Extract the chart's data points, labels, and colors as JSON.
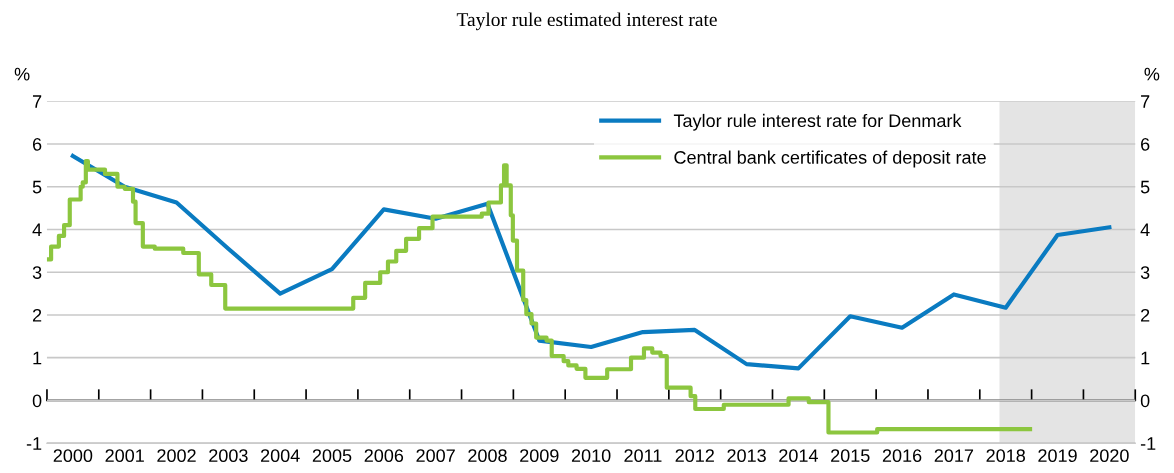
{
  "chart_data": {
    "type": "line",
    "title": "Taylor rule estimated interest rate",
    "ylabel": "%",
    "y2label": "%",
    "series": [
      {
        "name": "Taylor rule interest rate for Denmark",
        "color": "#0a7bc1",
        "x": [
          2000.5,
          2001.5,
          2002.5,
          2003.5,
          2004.5,
          2005.5,
          2006.5,
          2007.5,
          2008.5,
          2009.5,
          2010.5,
          2011.5,
          2012.5,
          2013.5,
          2014.5,
          2015.5,
          2016.5,
          2017.5,
          2018.5,
          2019.5,
          2020.5
        ],
        "values": [
          5.72,
          5.0,
          4.63,
          3.55,
          2.5,
          3.07,
          4.47,
          4.25,
          4.6,
          1.4,
          1.25,
          1.6,
          1.65,
          0.85,
          0.75,
          1.97,
          1.7,
          2.48,
          2.17,
          3.87,
          4.05
        ]
      },
      {
        "name": "Central bank certificates of deposit rate",
        "color": "#8cc63f",
        "type": "step",
        "x": [
          2000.0,
          2000.08,
          2000.23,
          2000.33,
          2000.44,
          2000.65,
          2000.69,
          2000.75,
          2000.79,
          2001.12,
          2001.36,
          2001.5,
          2001.66,
          2001.71,
          2001.85,
          2002.08,
          2002.63,
          2002.93,
          2003.17,
          2003.44,
          2005.91,
          2006.14,
          2006.43,
          2006.58,
          2006.74,
          2006.93,
          2007.18,
          2007.44,
          2008.39,
          2008.52,
          2008.76,
          2008.82,
          2008.87,
          2008.95,
          2008.99,
          2009.07,
          2009.19,
          2009.25,
          2009.35,
          2009.44,
          2009.64,
          2009.74,
          2009.97,
          2010.06,
          2010.22,
          2010.39,
          2010.81,
          2011.27,
          2011.52,
          2011.68,
          2011.84,
          2011.96,
          2012.42,
          2012.51,
          2013.06,
          2014.31,
          2014.7,
          2015.08,
          2016.02,
          2018.97
        ],
        "values": [
          3.3,
          3.6,
          3.85,
          4.1,
          4.7,
          5.0,
          5.1,
          5.6,
          5.4,
          5.3,
          5.0,
          4.95,
          4.65,
          4.15,
          3.6,
          3.55,
          3.45,
          2.95,
          2.7,
          2.15,
          2.4,
          2.75,
          3.0,
          3.25,
          3.5,
          3.78,
          4.03,
          4.3,
          4.37,
          4.63,
          5.03,
          5.5,
          5.03,
          4.33,
          3.74,
          3.04,
          2.35,
          2.02,
          1.8,
          1.47,
          1.4,
          1.04,
          0.92,
          0.82,
          0.74,
          0.53,
          0.73,
          1.0,
          1.22,
          1.12,
          1.04,
          0.3,
          0.1,
          -0.2,
          -0.1,
          0.05,
          -0.04,
          -0.75,
          -0.67,
          -0.67
        ]
      }
    ],
    "xlim": [
      2000,
      2021
    ],
    "ylim": [
      -1,
      7
    ],
    "yticks": [
      -1,
      0,
      1,
      2,
      3,
      4,
      5,
      6,
      7
    ],
    "y2lim": [
      -1,
      7
    ],
    "y2ticks": [
      -1,
      0,
      1,
      2,
      3,
      4,
      5,
      6,
      7
    ],
    "xticks": [
      {
        "value": 2000,
        "label": null
      },
      {
        "value": 2001,
        "label": null
      },
      {
        "value": 2002,
        "label": null
      },
      {
        "value": 2003,
        "label": null
      },
      {
        "value": 2004,
        "label": null
      },
      {
        "value": 2005,
        "label": null
      },
      {
        "value": 2006,
        "label": null
      },
      {
        "value": 2007,
        "label": null
      },
      {
        "value": 2008,
        "label": null
      },
      {
        "value": 2009,
        "label": null
      },
      {
        "value": 2010,
        "label": null
      },
      {
        "value": 2011,
        "label": null
      },
      {
        "value": 2012,
        "label": null
      },
      {
        "value": 2013,
        "label": null
      },
      {
        "value": 2014,
        "label": null
      },
      {
        "value": 2015,
        "label": null
      },
      {
        "value": 2016,
        "label": null
      },
      {
        "value": 2017,
        "label": null
      },
      {
        "value": 2018,
        "label": null
      },
      {
        "value": 2019,
        "label": null
      },
      {
        "value": 2020,
        "label": null
      },
      {
        "value": 2021,
        "label": null
      },
      {
        "value": 2000.5,
        "label": "2000"
      },
      {
        "value": 2001.5,
        "label": "2001"
      },
      {
        "value": 2002.5,
        "label": "2002"
      },
      {
        "value": 2003.5,
        "label": "2003"
      },
      {
        "value": 2004.5,
        "label": "2004"
      },
      {
        "value": 2005.5,
        "label": "2005"
      },
      {
        "value": 2006.5,
        "label": "2006"
      },
      {
        "value": 2007.5,
        "label": "2007"
      },
      {
        "value": 2008.5,
        "label": "2008"
      },
      {
        "value": 2009.5,
        "label": "2009"
      },
      {
        "value": 2010.5,
        "label": "2010"
      },
      {
        "value": 2011.5,
        "label": "2011"
      },
      {
        "value": 2012.5,
        "label": "2012"
      },
      {
        "value": 2013.5,
        "label": "2013"
      },
      {
        "value": 2014.5,
        "label": "2014"
      },
      {
        "value": 2015.5,
        "label": "2015"
      },
      {
        "value": 2016.5,
        "label": "2016"
      },
      {
        "value": 2017.5,
        "label": "2017"
      },
      {
        "value": 2018.5,
        "label": "2018"
      },
      {
        "value": 2019.5,
        "label": "2019"
      },
      {
        "value": 2020.5,
        "label": "2020"
      }
    ],
    "bands": [
      {
        "axis": "x",
        "from": 2018.38,
        "to": 2021,
        "color": "#e4e4e4"
      }
    ],
    "grid": "y",
    "legend": "top right",
    "marker": "none",
    "line_style": "solid"
  }
}
